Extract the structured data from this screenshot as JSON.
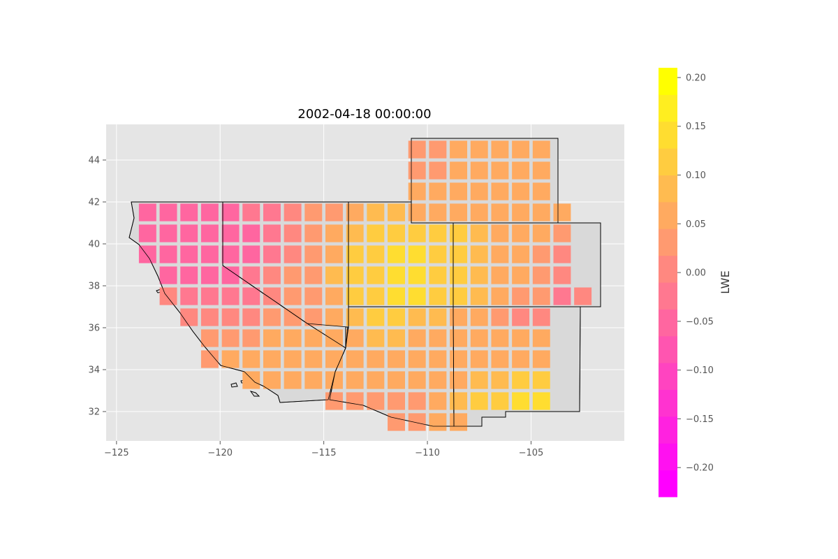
{
  "chart_data": {
    "type": "heatmap",
    "title": "2002-04-18 00:00:00",
    "xlim": [
      -125.5,
      -100.5
    ],
    "ylim": [
      30.6,
      45.7
    ],
    "x_ticks": [
      -125,
      -120,
      -115,
      -110,
      -105
    ],
    "y_ticks": [
      32,
      34,
      36,
      38,
      40,
      42,
      44
    ],
    "x_tick_labels": [
      "−125",
      "−120",
      "−115",
      "−110",
      "−105"
    ],
    "y_tick_labels": [
      "32",
      "34",
      "36",
      "38",
      "40",
      "42",
      "44"
    ],
    "grid": true,
    "cell_size_deg": 1,
    "colorbar": {
      "label": "LWE",
      "min": -0.23,
      "max": 0.21,
      "levels": 16,
      "ticks": [
        0.2,
        0.15,
        0.1,
        0.05,
        0.0,
        -0.05,
        -0.1,
        -0.15,
        -0.2
      ],
      "tick_labels": [
        "0.20",
        "0.15",
        "0.10",
        "0.05",
        "0.00",
        "−0.05",
        "−0.10",
        "−0.15",
        "−0.20"
      ],
      "colors": [
        "#ff00ff",
        "#ff11f0",
        "#ff22e0",
        "#ff33d0",
        "#ff44c0",
        "#ff55b0",
        "#ff66a0",
        "#ff7890",
        "#ff8880",
        "#ff9a70",
        "#ffaa60",
        "#ffbb50",
        "#ffcc40",
        "#ffdd30",
        "#ffee20",
        "#ffff00"
      ]
    },
    "rows": [
      {
        "lat": 44.5,
        "lon_start": -110.5,
        "values": [
          0.03,
          0.03,
          0.07,
          0.07,
          0.07,
          0.07,
          0.07
        ]
      },
      {
        "lat": 43.5,
        "lon_start": -110.5,
        "values": [
          0.04,
          0.04,
          0.07,
          0.07,
          0.07,
          0.07,
          0.07
        ]
      },
      {
        "lat": 42.5,
        "lon_start": -110.5,
        "values": [
          0.06,
          0.07,
          0.07,
          0.07,
          0.07,
          0.07,
          0.07
        ]
      },
      {
        "lat": 41.5,
        "lon_start": -123.5,
        "values": [
          -0.04,
          -0.04,
          -0.04,
          -0.04,
          -0.04,
          -0.03,
          -0.03,
          -0.01,
          0.02,
          0.03,
          0.07,
          0.08,
          0.08,
          0.06,
          0.07,
          0.07,
          0.07,
          0.07,
          0.07,
          0.07,
          0.07
        ]
      },
      {
        "lat": 40.5,
        "lon_start": -123.5,
        "values": [
          -0.04,
          -0.04,
          -0.04,
          -0.05,
          -0.05,
          -0.04,
          -0.02,
          -0.01,
          0.02,
          0.07,
          0.08,
          0.1,
          0.11,
          0.11,
          0.11,
          0.11,
          0.09,
          0.07,
          0.05,
          0.05,
          0.04
        ]
      },
      {
        "lat": 39.5,
        "lon_start": -123.5,
        "values": [
          -0.04,
          -0.04,
          -0.04,
          -0.04,
          -0.05,
          -0.04,
          -0.02,
          -0.01,
          0.02,
          0.07,
          0.1,
          0.11,
          0.13,
          0.13,
          0.12,
          0.11,
          0.08,
          0.07,
          0.05,
          0.02,
          0.0
        ]
      },
      {
        "lat": 38.5,
        "lon_start": -122.5,
        "values": [
          -0.04,
          -0.04,
          -0.04,
          -0.04,
          -0.03,
          -0.01,
          0.02,
          0.03,
          0.08,
          0.1,
          0.12,
          0.13,
          0.13,
          0.12,
          0.11,
          0.08,
          0.07,
          0.05,
          0.02,
          -0.01
        ]
      },
      {
        "lat": 37.5,
        "lon_start": -122.5,
        "values": [
          0.0,
          -0.03,
          -0.03,
          -0.03,
          -0.02,
          -0.01,
          0.02,
          0.03,
          0.07,
          0.1,
          0.11,
          0.13,
          0.13,
          0.11,
          0.1,
          0.08,
          0.06,
          0.04,
          0.02,
          -0.02,
          -0.01
        ]
      },
      {
        "lat": 36.5,
        "lon_start": -121.5,
        "values": [
          -0.01,
          0.0,
          0.0,
          0.01,
          0.03,
          0.03,
          0.04,
          0.07,
          0.09,
          0.1,
          0.1,
          0.09,
          0.08,
          0.07,
          0.05,
          0.03,
          -0.01,
          -0.01
        ]
      },
      {
        "lat": 35.5,
        "lon_start": -120.5,
        "values": [
          0.02,
          0.03,
          0.04,
          0.05,
          0.05,
          0.06,
          0.07,
          0.07,
          0.08,
          0.08,
          0.07,
          0.07,
          0.06,
          0.06,
          0.05,
          0.05,
          0.05
        ]
      },
      {
        "lat": 34.5,
        "lon_start": -120.5,
        "values": [
          0.04,
          0.05,
          0.06,
          0.06,
          0.07,
          0.07,
          0.07,
          0.06,
          0.06,
          0.06,
          0.06,
          0.06,
          0.07,
          0.07,
          0.07,
          0.07,
          0.07
        ]
      },
      {
        "lat": 33.5,
        "lon_start": -118.5,
        "values": [
          0.07,
          0.07,
          0.07,
          0.07,
          0.07,
          0.07,
          0.06,
          0.06,
          0.06,
          0.07,
          0.07,
          0.08,
          0.09,
          0.1,
          0.11
        ]
      },
      {
        "lat": 32.5,
        "lon_start": -114.5,
        "values": [
          0.04,
          0.04,
          0.03,
          0.03,
          0.04,
          0.06,
          0.08,
          0.1,
          0.11,
          0.13,
          0.15
        ]
      },
      {
        "lat": 31.5,
        "lon_start": -111.5,
        "values": [
          0.03,
          0.04,
          0.05,
          0.05
        ]
      }
    ]
  }
}
